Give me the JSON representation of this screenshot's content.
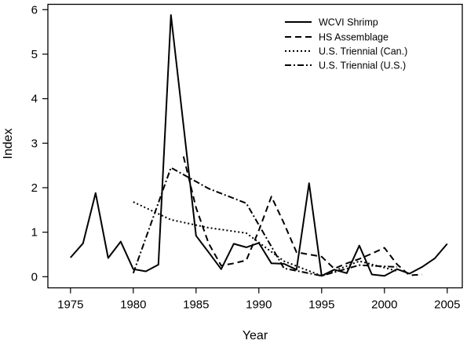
{
  "chart_data": {
    "type": "line",
    "xlabel": "Year",
    "ylabel": "Index",
    "xlim": [
      1973.2,
      2006.2
    ],
    "ylim": [
      -0.25,
      6.12
    ],
    "xticks": [
      1975,
      1980,
      1985,
      1990,
      1995,
      2000,
      2005
    ],
    "yticks": [
      0,
      1,
      2,
      3,
      4,
      5,
      6
    ],
    "grid": false,
    "legend_position": "top-right",
    "series": [
      {
        "name": "WCVI Shrimp",
        "style": "solid",
        "color": "#000000",
        "x": [
          1975,
          1976,
          1977,
          1978,
          1979,
          1980,
          1981,
          1982,
          1983,
          1984,
          1985,
          1986,
          1987,
          1988,
          1989,
          1990,
          1991,
          1992,
          1993,
          1994,
          1995,
          1996,
          1997,
          1998,
          1999,
          2000,
          2001,
          2002,
          2003,
          2004,
          2005
        ],
        "y": [
          0.43,
          0.75,
          1.88,
          0.42,
          0.79,
          0.17,
          0.12,
          0.27,
          5.88,
          3.4,
          0.92,
          0.55,
          0.17,
          0.74,
          0.66,
          0.76,
          0.3,
          0.29,
          0.16,
          2.1,
          0.02,
          0.16,
          0.08,
          0.7,
          0.05,
          0.02,
          0.17,
          0.07,
          0.22,
          0.41,
          0.74
        ]
      },
      {
        "name": "HS Assemblage",
        "style": "dashed",
        "color": "#000000",
        "x": [
          1984,
          1985,
          1986,
          1987,
          1988,
          1989,
          1990,
          1991,
          1992,
          1993,
          1994,
          1995,
          1996,
          1997,
          1998,
          1999,
          2000,
          2001,
          2002,
          2003
        ],
        "y": [
          2.7,
          1.55,
          0.75,
          0.25,
          0.3,
          0.37,
          1.04,
          1.8,
          1.2,
          0.55,
          0.5,
          0.45,
          0.18,
          0.3,
          0.4,
          0.52,
          0.65,
          0.28,
          0.03,
          0.05
        ]
      },
      {
        "name": "U.S. Triennial (Can.)",
        "style": "dotted",
        "color": "#000000",
        "x": [
          1980,
          1983,
          1986,
          1989,
          1992,
          1995,
          1998,
          2001
        ],
        "y": [
          1.68,
          1.28,
          1.1,
          0.98,
          0.35,
          0.02,
          0.35,
          0.13
        ]
      },
      {
        "name": "U.S. Triennial (U.S.)",
        "style": "dashdot",
        "color": "#000000",
        "x": [
          1980,
          1983,
          1986,
          1989,
          1992,
          1995,
          1998,
          2001
        ],
        "y": [
          0.08,
          2.45,
          1.98,
          1.65,
          0.19,
          0.02,
          0.26,
          0.22
        ]
      }
    ]
  }
}
